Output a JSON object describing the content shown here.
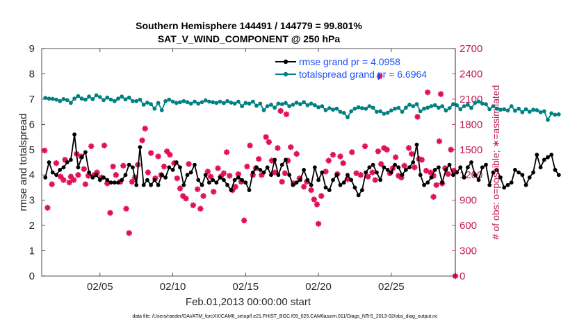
{
  "chart_data": {
    "type": "line",
    "title_line1": "Southern Hemisphere 144491 / 144779 = 99.801%",
    "title_line2": "SAT_V_WIND_COMPONENT @ 250 hPa",
    "xlabel": "Feb.01,2013 00:00:00 start",
    "ylabel_left": "rmse and totalspread",
    "ylabel_right": "# of obs: o=possible; ∗=assimilated",
    "xlim": [
      1,
      29.4
    ],
    "ylim_left": [
      0,
      9
    ],
    "ylim_right": [
      0,
      2700
    ],
    "x_ticks": [
      5,
      10,
      15,
      20,
      25
    ],
    "x_tick_labels": [
      "02/05",
      "02/10",
      "02/15",
      "02/20",
      "02/25"
    ],
    "y_ticks_left": [
      "0",
      "1",
      "2",
      "3",
      "4",
      "5",
      "6",
      "7",
      "8",
      "9"
    ],
    "y_ticks_right": [
      "0",
      "300",
      "600",
      "900",
      "1200",
      "1500",
      "1800",
      "2100",
      "2400",
      "2700"
    ],
    "x_step_days": 0.25,
    "x_start_day": 1.25,
    "series": [
      {
        "name": "rmse grand pr = 4.0958",
        "color": "#000000",
        "axis": "left",
        "values": [
          3.9,
          4.5,
          4.1,
          4.0,
          4.2,
          4.3,
          4.5,
          4.6,
          5.6,
          4.3,
          4.7,
          4.9,
          4.1,
          3.9,
          4.0,
          3.8,
          3.9,
          3.8,
          3.7,
          3.7,
          3.7,
          3.8,
          4.0,
          4.4,
          4.3,
          3.6,
          5.1,
          3.6,
          3.8,
          3.6,
          3.8,
          3.6,
          4.0,
          3.9,
          4.3,
          4.2,
          4.5,
          4.3,
          3.6,
          4.0,
          4.1,
          4.4,
          3.8,
          3.6,
          4.0,
          3.7,
          3.8,
          3.7,
          3.9,
          3.8,
          3.6,
          3.4,
          3.8,
          3.9,
          3.8,
          3.7,
          3.4,
          4.1,
          4.3,
          4.2,
          4.1,
          4.3,
          4.0,
          4.6,
          4.0,
          4.4,
          4.6,
          4.0,
          3.6,
          3.7,
          3.8,
          4.2,
          3.8,
          3.6,
          4.3,
          3.8,
          4.1,
          3.5,
          3.4,
          3.8,
          4.0,
          3.6,
          3.7,
          4.0,
          3.8,
          3.5,
          3.2,
          3.4,
          4.1,
          4.3,
          4.4,
          4.1,
          3.8,
          4.3,
          4.2,
          4.1,
          4.4,
          4.3,
          4.0,
          4.2,
          4.3,
          4.5,
          5.2,
          4.0,
          3.6,
          3.7,
          3.9,
          4.2,
          4.3,
          3.7,
          4.2,
          4.4,
          4.0,
          4.1,
          4.3,
          3.9,
          4.3,
          4.5,
          4.0,
          3.8,
          4.3,
          4.4,
          3.6,
          4.1,
          4.2,
          3.9,
          3.5,
          3.6,
          3.7,
          4.2,
          4.1,
          4.0,
          3.6,
          3.9,
          4.1,
          4.8,
          4.3,
          4.6,
          4.7,
          4.8,
          4.2,
          4.0
        ]
      },
      {
        "name": "totalspread grand pr = 6.6964",
        "color": "#008080",
        "axis": "left",
        "values": [
          7.05,
          7.02,
          7.01,
          6.98,
          6.92,
          7.0,
          6.96,
          6.85,
          7.02,
          7.12,
          7.02,
          6.98,
          7.1,
          7.0,
          7.15,
          7.08,
          6.96,
          7.06,
          6.98,
          6.92,
          7.02,
          7.1,
          6.99,
          7.06,
          6.92,
          6.92,
          6.98,
          6.78,
          6.86,
          6.8,
          6.62,
          6.85,
          6.56,
          6.92,
          6.98,
          6.9,
          6.85,
          6.88,
          6.92,
          6.88,
          6.82,
          6.9,
          6.82,
          6.88,
          6.95,
          6.9,
          6.88,
          6.85,
          6.9,
          6.84,
          6.92,
          6.86,
          6.82,
          6.9,
          6.72,
          6.85,
          6.82,
          6.9,
          6.74,
          6.82,
          6.56,
          6.72,
          6.78,
          6.66,
          6.82,
          6.8,
          6.85,
          6.72,
          6.78,
          6.86,
          6.8,
          6.88,
          6.76,
          6.82,
          6.76,
          6.68,
          6.72,
          6.56,
          6.64,
          6.58,
          6.62,
          6.5,
          6.45,
          6.28,
          6.52,
          6.62,
          6.68,
          6.64,
          6.62,
          6.72,
          6.66,
          6.5,
          6.52,
          6.42,
          6.46,
          6.55,
          6.62,
          6.65,
          6.5,
          6.66,
          6.78,
          6.72,
          6.8,
          6.52,
          6.62,
          6.66,
          6.72,
          6.76,
          6.66,
          6.72,
          6.55,
          6.64,
          6.8,
          6.76,
          6.6,
          6.72,
          6.78,
          6.65,
          6.85,
          6.9,
          6.82,
          6.8,
          6.6,
          6.72,
          6.62,
          6.58,
          6.6,
          6.55,
          6.72,
          6.54,
          6.62,
          6.48,
          6.6,
          6.5,
          6.58,
          6.56,
          6.48,
          6.52,
          6.18,
          6.44,
          6.38,
          6.4
        ]
      }
    ],
    "obs_assimilated": {
      "name": "assimilated observations",
      "color": "#e0105a",
      "axis": "right",
      "marker": "asterisk",
      "points": [
        [
          1.2,
          1490
        ],
        [
          1.4,
          810
        ],
        [
          1.7,
          1090
        ],
        [
          2.0,
          1340
        ],
        [
          2.3,
          1180
        ],
        [
          2.5,
          1140
        ],
        [
          2.6,
          1380
        ],
        [
          2.9,
          1110
        ],
        [
          3.0,
          1180
        ],
        [
          3.2,
          1140
        ],
        [
          3.4,
          1450
        ],
        [
          3.5,
          1200
        ],
        [
          3.7,
          1420
        ],
        [
          3.9,
          1270
        ],
        [
          4.0,
          1090
        ],
        [
          4.2,
          1190
        ],
        [
          4.4,
          1540
        ],
        [
          4.6,
          1200
        ],
        [
          4.8,
          1230
        ],
        [
          5.1,
          1170
        ],
        [
          5.3,
          1550
        ],
        [
          5.5,
          1100
        ],
        [
          5.7,
          750
        ],
        [
          5.9,
          1300
        ],
        [
          6.1,
          1200
        ],
        [
          6.4,
          1120
        ],
        [
          6.6,
          1310
        ],
        [
          6.8,
          800
        ],
        [
          7.0,
          510
        ],
        [
          7.2,
          1120
        ],
        [
          7.4,
          1170
        ],
        [
          7.6,
          1320
        ],
        [
          7.9,
          1610
        ],
        [
          8.1,
          1750
        ],
        [
          8.3,
          1230
        ],
        [
          8.5,
          1460
        ],
        [
          8.8,
          1160
        ],
        [
          9.0,
          1420
        ],
        [
          9.2,
          1200
        ],
        [
          9.4,
          1300
        ],
        [
          9.6,
          1480
        ],
        [
          9.8,
          1440
        ],
        [
          10.1,
          1340
        ],
        [
          10.3,
          1160
        ],
        [
          10.5,
          1040
        ],
        [
          10.7,
          950
        ],
        [
          10.9,
          920
        ],
        [
          11.1,
          1330
        ],
        [
          11.4,
          840
        ],
        [
          11.7,
          1030
        ],
        [
          11.9,
          800
        ],
        [
          12.1,
          950
        ],
        [
          12.4,
          1240
        ],
        [
          12.6,
          1180
        ],
        [
          12.8,
          1000
        ],
        [
          13.1,
          1280
        ],
        [
          13.3,
          1180
        ],
        [
          13.5,
          1220
        ],
        [
          13.7,
          1470
        ],
        [
          13.9,
          1190
        ],
        [
          14.1,
          1020
        ],
        [
          14.3,
          1060
        ],
        [
          14.5,
          1210
        ],
        [
          14.7,
          1120
        ],
        [
          14.9,
          660
        ],
        [
          15.1,
          1300
        ],
        [
          15.3,
          1550
        ],
        [
          15.5,
          1200
        ],
        [
          15.7,
          1280
        ],
        [
          15.9,
          1390
        ],
        [
          16.1,
          1200
        ],
        [
          16.4,
          1650
        ],
        [
          16.6,
          1590
        ],
        [
          16.8,
          1370
        ],
        [
          17.0,
          1230
        ],
        [
          17.2,
          1520
        ],
        [
          17.5,
          1120
        ],
        [
          17.7,
          1220
        ],
        [
          17.9,
          1370
        ],
        [
          18.1,
          1530
        ],
        [
          18.3,
          1100
        ],
        [
          18.5,
          1450
        ],
        [
          18.7,
          1160
        ],
        [
          19.0,
          1060
        ],
        [
          19.2,
          1120
        ],
        [
          19.5,
          1020
        ],
        [
          19.7,
          910
        ],
        [
          19.9,
          850
        ],
        [
          20.0,
          620
        ],
        [
          20.2,
          950
        ],
        [
          20.5,
          1240
        ],
        [
          20.7,
          1370
        ],
        [
          21.0,
          1440
        ],
        [
          21.3,
          1210
        ],
        [
          21.5,
          1420
        ],
        [
          21.7,
          1340
        ],
        [
          22.0,
          1150
        ],
        [
          22.3,
          1470
        ],
        [
          22.6,
          1220
        ],
        [
          22.9,
          1200
        ],
        [
          23.2,
          1540
        ],
        [
          23.4,
          1180
        ],
        [
          23.7,
          1230
        ],
        [
          23.9,
          1140
        ],
        [
          24.1,
          1480
        ],
        [
          24.3,
          1330
        ],
        [
          24.5,
          1520
        ],
        [
          24.7,
          1500
        ],
        [
          24.9,
          1220
        ],
        [
          25.1,
          1280
        ],
        [
          25.3,
          1410
        ],
        [
          25.5,
          1190
        ],
        [
          25.7,
          1170
        ],
        [
          25.9,
          1310
        ],
        [
          26.2,
          1520
        ],
        [
          26.4,
          1450
        ],
        [
          26.6,
          1290
        ],
        [
          26.9,
          1390
        ],
        [
          27.1,
          1380
        ],
        [
          27.4,
          1250
        ],
        [
          27.7,
          1230
        ],
        [
          27.9,
          1190
        ],
        [
          28.1,
          1080
        ],
        [
          28.3,
          1600
        ],
        [
          28.5,
          1100
        ],
        [
          28.7,
          1280
        ],
        [
          28.9,
          1210
        ],
        [
          29.1,
          1500
        ],
        [
          29.3,
          1250
        ]
      ],
      "outliers": [
        [
          17.4,
          1960
        ],
        [
          17.8,
          1920
        ],
        [
          24.2,
          2370
        ],
        [
          27.5,
          2180
        ],
        [
          28.4,
          2160
        ],
        [
          26.8,
          1890
        ],
        [
          27.9,
          940
        ]
      ]
    },
    "obs_possible_last": [
      [
        29.4,
        0
      ]
    ]
  },
  "footnote": "data file: /Users/raeder/DAI/ATM_forcXX/CAM6_setup/f.e21.FHIST_BGC.f09_025.CAM6assim.011/Diags_NTrS_2013-02/obs_diag_output.nc"
}
